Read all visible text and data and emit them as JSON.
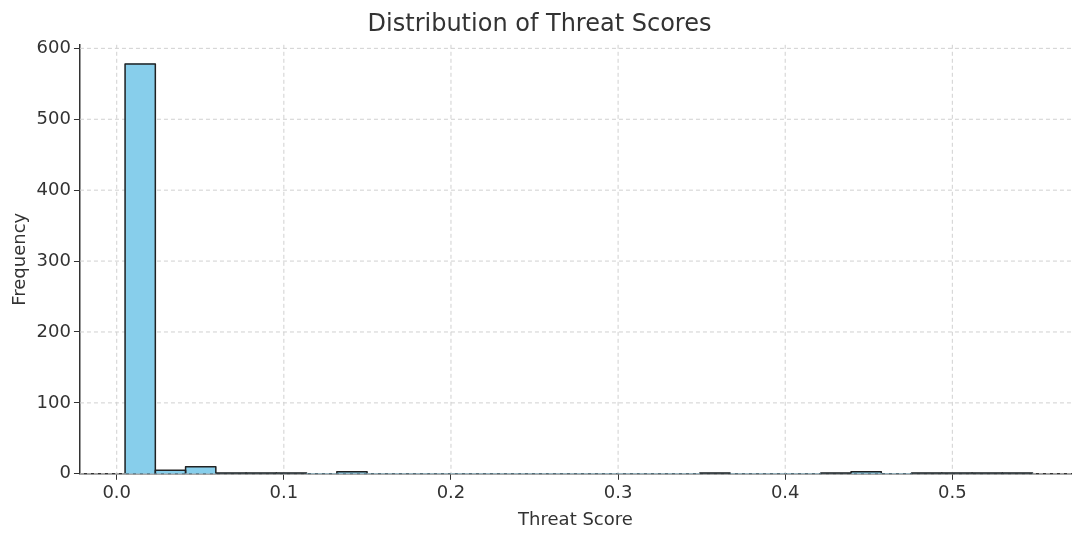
{
  "chart_data": {
    "type": "histogram",
    "title": "Distribution of Threat Scores",
    "xlabel": "Threat Score",
    "ylabel": "Frequency",
    "bins": [
      0.005,
      0.0231,
      0.0412,
      0.0593,
      0.0774,
      0.0955,
      0.1136,
      0.1317,
      0.1498,
      0.1679,
      0.186,
      0.2041,
      0.2222,
      0.2403,
      0.2584,
      0.2765,
      0.2946,
      0.3127,
      0.3308,
      0.3489,
      0.367,
      0.3851,
      0.4032,
      0.4213,
      0.4394,
      0.4575,
      0.4756,
      0.4937,
      0.5118,
      0.5299,
      0.548
    ],
    "values": [
      578,
      5,
      10,
      1,
      1,
      1,
      0,
      3,
      0,
      0,
      0,
      0,
      0,
      0,
      0,
      0,
      0,
      0,
      0,
      1,
      0,
      0,
      0,
      1,
      3,
      0,
      1,
      1,
      1,
      1
    ],
    "color": "#87ceeb",
    "xlim": [
      -0.022,
      0.571
    ],
    "xticks": [
      {
        "value": 0,
        "label": "0.0"
      },
      0.1,
      0.2,
      0.3,
      0.4,
      0.5
    ],
    "ylim": [
      0,
      605
    ],
    "yticks": [
      0,
      100,
      200,
      300,
      400,
      500,
      600
    ],
    "grid": true,
    "legend": false
  }
}
